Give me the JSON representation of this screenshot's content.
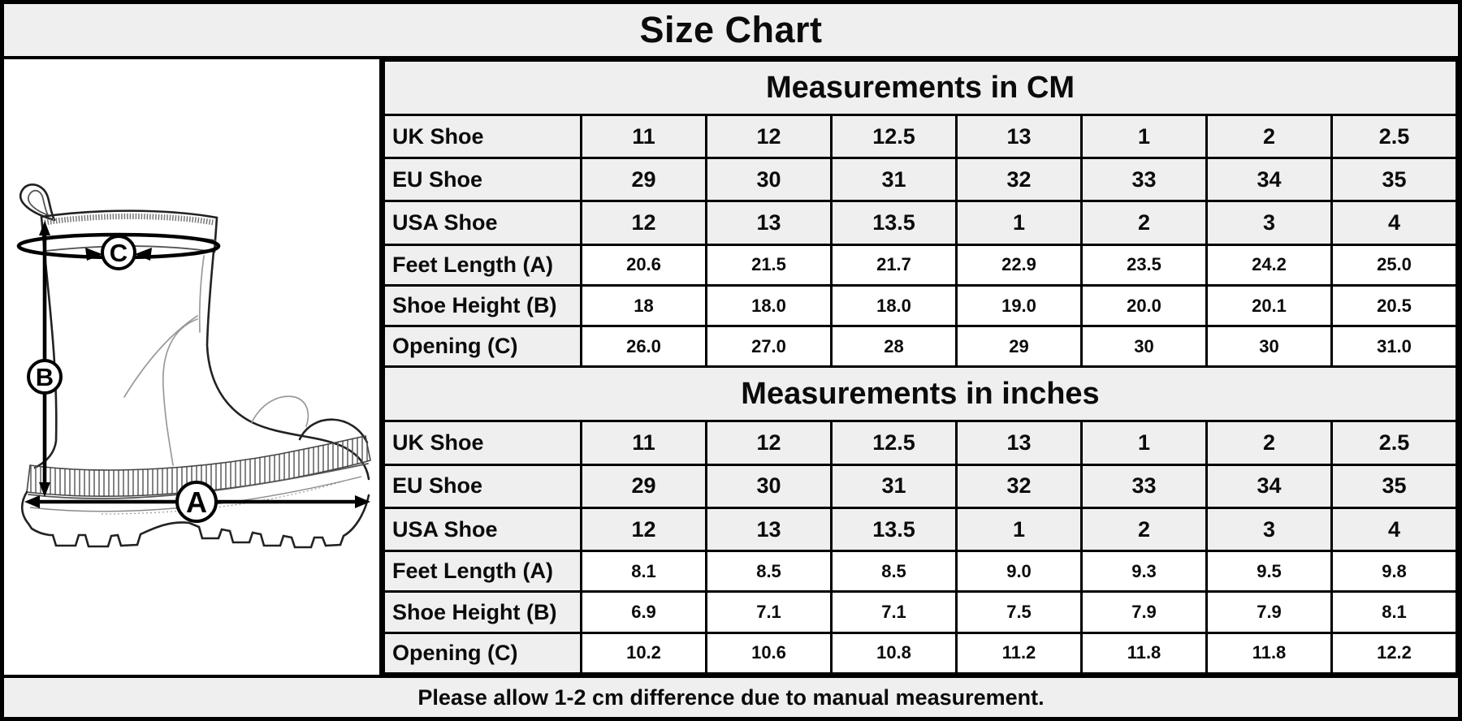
{
  "title": "Size Chart",
  "footer": {
    "note": "Please allow 1-2 cm difference due to manual measurement."
  },
  "diagram": {
    "marker_a": "A",
    "marker_b": "B",
    "marker_c": "C"
  },
  "colors": {
    "panel_gray": "#efefef",
    "border_black": "#000000",
    "cell_white": "#ffffff"
  },
  "table": {
    "sections": [
      {
        "header": "Measurements in CM",
        "rows": [
          {
            "label": "UK Shoe",
            "type": "size",
            "values": [
              "11",
              "12",
              "12.5",
              "13",
              "1",
              "2",
              "2.5"
            ]
          },
          {
            "label": "EU Shoe",
            "type": "size",
            "values": [
              "29",
              "30",
              "31",
              "32",
              "33",
              "34",
              "35"
            ]
          },
          {
            "label": "USA Shoe",
            "type": "size",
            "values": [
              "12",
              "13",
              "13.5",
              "1",
              "2",
              "3",
              "4"
            ]
          },
          {
            "label": "Feet Length (A)",
            "type": "measure",
            "values": [
              "20.6",
              "21.5",
              "21.7",
              "22.9",
              "23.5",
              "24.2",
              "25.0"
            ]
          },
          {
            "label": "Shoe Height (B)",
            "type": "measure",
            "values": [
              "18",
              "18.0",
              "18.0",
              "19.0",
              "20.0",
              "20.1",
              "20.5"
            ]
          },
          {
            "label": "Opening (C)",
            "type": "measure",
            "values": [
              "26.0",
              "27.0",
              "28",
              "29",
              "30",
              "30",
              "31.0"
            ]
          }
        ]
      },
      {
        "header": "Measurements in inches",
        "rows": [
          {
            "label": "UK Shoe",
            "type": "size",
            "values": [
              "11",
              "12",
              "12.5",
              "13",
              "1",
              "2",
              "2.5"
            ]
          },
          {
            "label": "EU Shoe",
            "type": "size",
            "values": [
              "29",
              "30",
              "31",
              "32",
              "33",
              "34",
              "35"
            ]
          },
          {
            "label": "USA Shoe",
            "type": "size",
            "values": [
              "12",
              "13",
              "13.5",
              "1",
              "2",
              "3",
              "4"
            ]
          },
          {
            "label": "Feet Length (A)",
            "type": "measure",
            "values": [
              "8.1",
              "8.5",
              "8.5",
              "9.0",
              "9.3",
              "9.5",
              "9.8"
            ]
          },
          {
            "label": "Shoe Height (B)",
            "type": "measure",
            "values": [
              "6.9",
              "7.1",
              "7.1",
              "7.5",
              "7.9",
              "7.9",
              "8.1"
            ]
          },
          {
            "label": "Opening (C)",
            "type": "measure",
            "values": [
              "10.2",
              "10.6",
              "10.8",
              "11.2",
              "11.8",
              "11.8",
              "12.2"
            ]
          }
        ]
      }
    ]
  }
}
